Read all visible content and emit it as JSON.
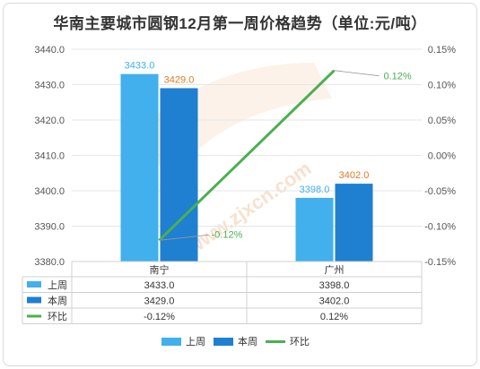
{
  "title": "华南主要城市圆钢12月第一周价格趋势（单位:元/吨）",
  "watermark": "www.zjxcn.com",
  "chart_data": {
    "type": "bar",
    "categories": [
      "南宁",
      "广州"
    ],
    "series": [
      {
        "name": "上周",
        "values": [
          3433.0,
          3398.0
        ],
        "color": "#41b0ec",
        "kind": "bar",
        "label_color": "#41b0ec"
      },
      {
        "name": "本周",
        "values": [
          3429.0,
          3402.0
        ],
        "color": "#1f7fd1",
        "kind": "bar",
        "label_color": "#e07b28"
      },
      {
        "name": "环比",
        "values": [
          -0.12,
          0.12
        ],
        "color": "#4caf50",
        "kind": "line",
        "unit": "%"
      }
    ],
    "y_left": {
      "min": 3380,
      "max": 3440,
      "ticks": [
        "3380.0",
        "3390.0",
        "3400.0",
        "3410.0",
        "3420.0",
        "3430.0",
        "3440.0"
      ]
    },
    "y_right": {
      "min": -0.15,
      "max": 0.15,
      "ticks": [
        "-0.15%",
        "-0.10%",
        "-0.05%",
        "0.00%",
        "0.05%",
        "0.10%",
        "0.15%"
      ]
    },
    "bar_labels": [
      [
        "3433.0",
        "3398.0"
      ],
      [
        "3429.0",
        "3402.0"
      ]
    ],
    "ratio_labels": [
      "-0.12%",
      "0.12%"
    ],
    "table": {
      "rows": [
        {
          "name": "上周",
          "cells": [
            "3433.0",
            "3398.0"
          ]
        },
        {
          "name": "本周",
          "cells": [
            "3429.0",
            "3402.0"
          ]
        },
        {
          "name": "环比",
          "cells": [
            "-0.12%",
            "0.12%"
          ]
        }
      ]
    },
    "legend": [
      "上周",
      "本周",
      "环比"
    ],
    "legend_position": "bottom"
  }
}
